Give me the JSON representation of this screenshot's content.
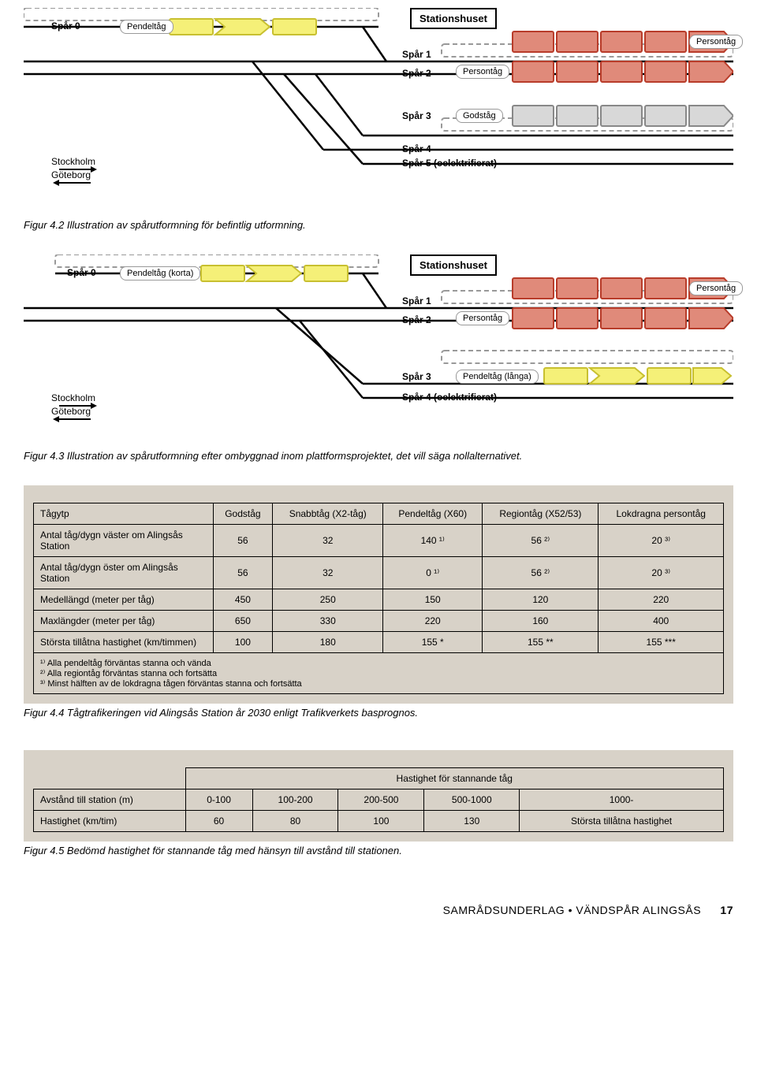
{
  "diagram1": {
    "station": "Stationshuset",
    "spar0": "Spår 0",
    "spar1": "Spår 1",
    "spar2": "Spår 2",
    "spar3": "Spår 3",
    "spar4": "Spår 4",
    "spar5": "Spår 5 (oelektrifierat)",
    "pendeltag": "Pendeltåg",
    "persontag1": "Persontåg",
    "persontag2": "Persontåg",
    "godstag": "Godståg",
    "stockholm": "Stockholm",
    "goteborg": "Göteborg",
    "colors": {
      "yellow_fill": "#f5f078",
      "yellow_stroke": "#c8c030",
      "red_fill": "#e08a7a",
      "red_stroke": "#b83c2a",
      "gray_fill": "#d8d8d8",
      "gray_stroke": "#888888"
    }
  },
  "caption1": "Figur 4.2 Illustration av spårutformning för befintlig utformning.",
  "diagram2": {
    "station": "Stationshuset",
    "spar0": "Spår 0",
    "spar1": "Spår 1",
    "spar2": "Spår 2",
    "spar3": "Spår 3",
    "spar4": "Spår 4 (oelektrifierat)",
    "pendeltag_korta": "Pendeltåg (korta)",
    "pendeltag_langa": "Pendeltåg (långa)",
    "persontag1": "Persontåg",
    "persontag2": "Persontåg",
    "stockholm": "Stockholm",
    "goteborg": "Göteborg"
  },
  "caption2": "Figur 4.3 Illustration av spårutformning efter ombyggnad inom plattformsprojektet, det vill säga nollalternativet.",
  "table1": {
    "headers": [
      "Tågytp",
      "Godståg",
      "Snabbtåg (X2-tåg)",
      "Pendeltåg (X60)",
      "Regiontåg (X52/53)",
      "Lokdragna persontåg"
    ],
    "rows": [
      {
        "label": "Antal tåg/dygn väster om Alingsås Station",
        "cells": [
          "56",
          "32",
          "140 ¹⁾",
          "56 ²⁾",
          "20 ³⁾"
        ]
      },
      {
        "label": "Antal tåg/dygn öster om Alingsås Station",
        "cells": [
          "56",
          "32",
          "0 ¹⁾",
          "56 ²⁾",
          "20 ³⁾"
        ]
      },
      {
        "label": "Medellängd (meter per tåg)",
        "cells": [
          "450",
          "250",
          "150",
          "120",
          "220"
        ]
      },
      {
        "label": "Maxlängder (meter per tåg)",
        "cells": [
          "650",
          "330",
          "220",
          "160",
          "400"
        ]
      },
      {
        "label": "Största tillåtna hastighet (km/timmen)",
        "cells": [
          "100",
          "180",
          "155 *",
          "155 **",
          "155 ***"
        ]
      }
    ],
    "notes": [
      "¹⁾ Alla pendeltåg förväntas stanna och vända",
      "²⁾ Alla regiontåg förväntas stanna och fortsätta",
      "³⁾ Minst hälften av de lokdragna tågen förväntas stanna och fortsätta"
    ]
  },
  "caption3": "Figur 4.4 Tågtrafikeringen vid Alingsås Station år 2030 enligt Trafikverkets basprognos.",
  "table2": {
    "super_header": "Hastighet för stannande tåg",
    "row1": {
      "label": "Avstånd till station (m)",
      "cells": [
        "0-100",
        "100-200",
        "200-500",
        "500-1000",
        "1000-"
      ]
    },
    "row2": {
      "label": "Hastighet (km/tim)",
      "cells": [
        "60",
        "80",
        "100",
        "130",
        "Största tillåtna hastighet"
      ]
    }
  },
  "caption4": "Figur 4.5 Bedömd hastighet för stannande tåg med hänsyn till avstånd till stationen.",
  "footer": {
    "text": "SAMRÅDSUNDERLAG • VÄNDSPÅR ALINGSÅS",
    "page": "17"
  }
}
